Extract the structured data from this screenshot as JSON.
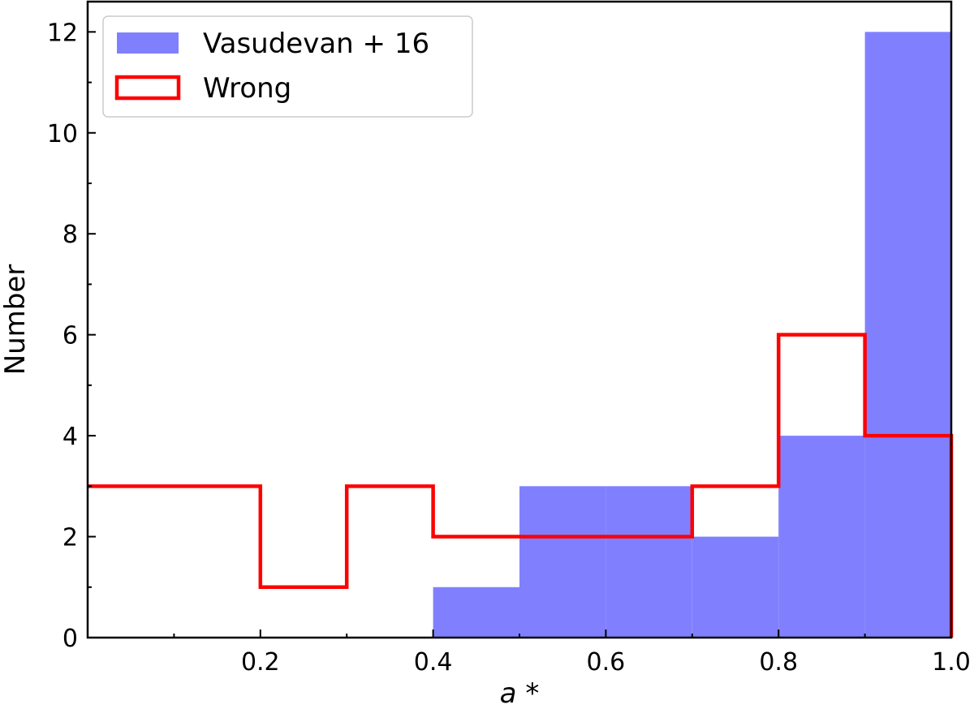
{
  "chart_data": {
    "type": "bar",
    "xlabel": "a *",
    "ylabel": "Number",
    "xlim": [
      0.0,
      1.0
    ],
    "ylim": [
      0,
      12.6
    ],
    "x_ticks": [
      0.2,
      0.4,
      0.6,
      0.8,
      1.0
    ],
    "x_tick_labels": [
      "0.2",
      "0.4",
      "0.6",
      "0.8",
      "1.0"
    ],
    "y_ticks": [
      0,
      2,
      4,
      6,
      8,
      10,
      12
    ],
    "y_tick_labels": [
      "0",
      "2",
      "4",
      "6",
      "8",
      "10",
      "12"
    ],
    "bin_edges": [
      0.0,
      0.1,
      0.2,
      0.3,
      0.4,
      0.5,
      0.6,
      0.7,
      0.8,
      0.9,
      1.0
    ],
    "legend_position": "top-left",
    "grid": false,
    "series": [
      {
        "name": "Vasudevan + 16",
        "style": "filled",
        "color": "#8080ff",
        "values": [
          0,
          0,
          0,
          0,
          1,
          3,
          3,
          2,
          4,
          12
        ]
      },
      {
        "name": "Wrong",
        "style": "step",
        "color": "#ff0000",
        "values": [
          3,
          3,
          1,
          3,
          2,
          2,
          2,
          3,
          6,
          4
        ]
      }
    ]
  }
}
